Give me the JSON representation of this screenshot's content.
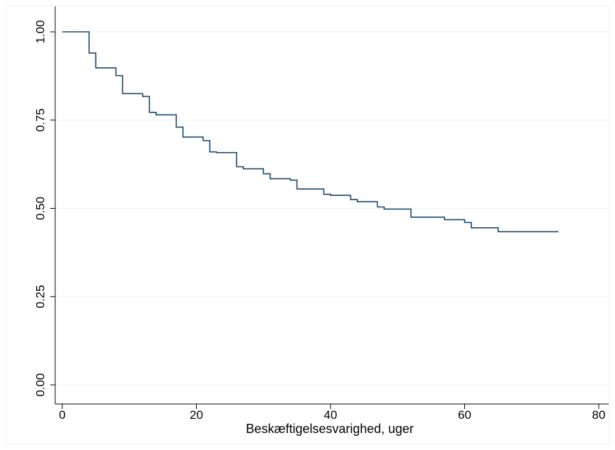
{
  "chart_data": {
    "type": "line",
    "step": true,
    "xlabel": "Beskæftigelsesvarighed, uger",
    "ylabel": "",
    "xlim": [
      0,
      80
    ],
    "ylim": [
      0,
      1
    ],
    "x_ticks": [
      0,
      20,
      40,
      60,
      80
    ],
    "x_tick_labels": [
      "0",
      "20",
      "40",
      "60",
      "80"
    ],
    "y_ticks": [
      0,
      0.25,
      0.5,
      0.75,
      1
    ],
    "y_tick_labels": [
      "0.00",
      "0.25",
      "0.50",
      "0.75",
      "1.00"
    ],
    "grid": true,
    "line_color": "#1a476f",
    "grid_color": "#eaf2f3",
    "series": [
      {
        "x": [
          0,
          4,
          5,
          8,
          9,
          12,
          13,
          14,
          17,
          18,
          21,
          22,
          23,
          26,
          27,
          30,
          31,
          34,
          35,
          39,
          40,
          43,
          44,
          47,
          48,
          52,
          57,
          60,
          61,
          65,
          74
        ],
        "y": [
          1.0,
          0.94,
          0.898,
          0.876,
          0.825,
          0.817,
          0.772,
          0.765,
          0.73,
          0.702,
          0.692,
          0.66,
          0.658,
          0.618,
          0.612,
          0.598,
          0.584,
          0.58,
          0.555,
          0.54,
          0.537,
          0.525,
          0.519,
          0.504,
          0.498,
          0.475,
          0.468,
          0.46,
          0.445,
          0.434,
          0.434
        ]
      }
    ]
  }
}
